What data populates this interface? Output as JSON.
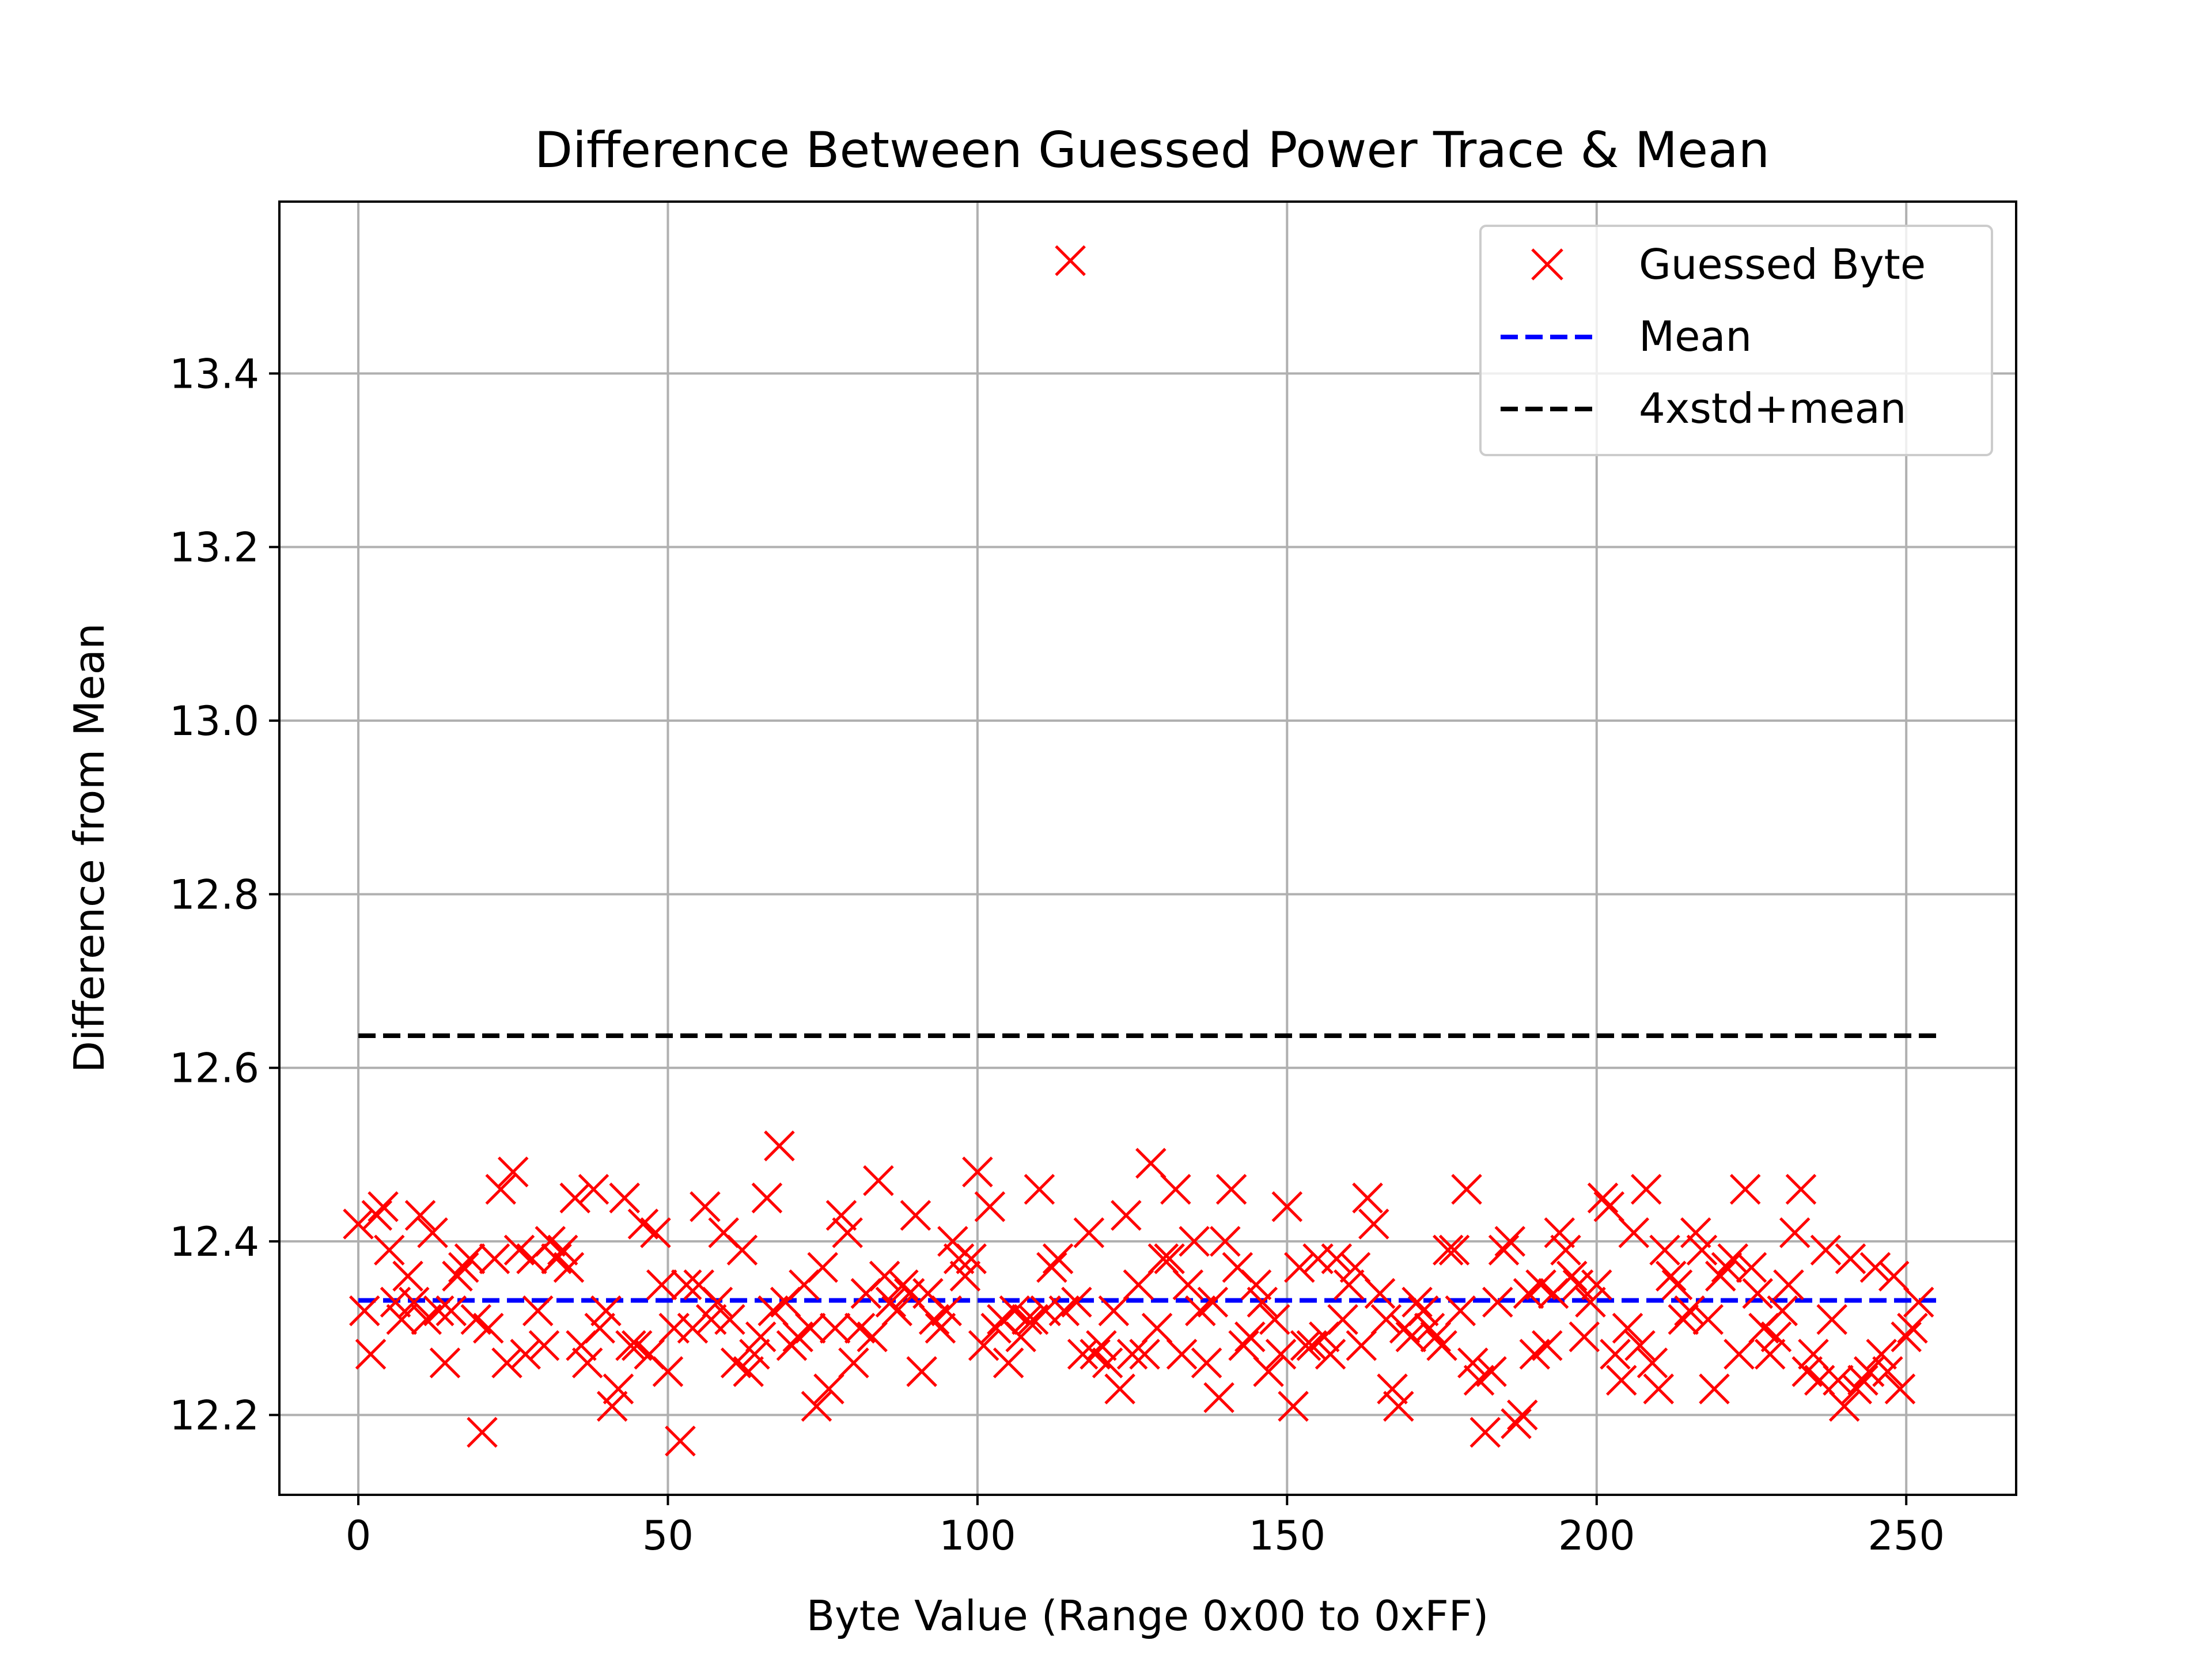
{
  "chart_data": {
    "type": "scatter",
    "title": "Difference Between Guessed Power Trace & Mean",
    "xlabel": "Byte Value (Range 0x00 to 0xFF)",
    "ylabel": "Difference from Mean",
    "xlim": [
      -12.75,
      267.75
    ],
    "ylim": [
      12.108,
      13.598
    ],
    "xticks": [
      0,
      50,
      100,
      150,
      200,
      250
    ],
    "xtick_labels": [
      "0",
      "50",
      "100",
      "150",
      "200",
      "250"
    ],
    "yticks": [
      12.2,
      12.4,
      12.6,
      12.8,
      13.0,
      13.2,
      13.4
    ],
    "ytick_labels": [
      "12.2",
      "12.4",
      "12.6",
      "12.8",
      "13.0",
      "13.2",
      "13.4"
    ],
    "grid": true,
    "legend_position": "top-right",
    "colors": {
      "points": "#ff0000",
      "mean": "#0000ff",
      "threshold": "#000000",
      "grid": "#b0b0b0"
    },
    "series": [
      {
        "name": "Guessed Byte",
        "kind": "scatter",
        "marker": "x",
        "x_start": 0,
        "values": [
          12.42,
          12.32,
          12.27,
          12.43,
          12.44,
          12.39,
          12.33,
          12.31,
          12.36,
          12.33,
          12.43,
          12.31,
          12.41,
          12.32,
          12.26,
          12.32,
          12.36,
          12.37,
          12.38,
          12.31,
          12.18,
          12.3,
          12.38,
          12.46,
          12.26,
          12.48,
          12.39,
          12.27,
          12.38,
          12.32,
          12.28,
          12.4,
          12.38,
          12.39,
          12.37,
          12.45,
          12.28,
          12.26,
          12.46,
          12.3,
          12.32,
          12.21,
          12.23,
          12.45,
          12.28,
          12.28,
          12.42,
          12.27,
          12.41,
          12.35,
          12.25,
          12.3,
          12.17,
          12.35,
          12.3,
          12.35,
          12.44,
          12.31,
          12.33,
          12.41,
          12.31,
          12.26,
          12.39,
          12.25,
          12.27,
          12.29,
          12.45,
          12.32,
          12.51,
          12.33,
          12.28,
          12.29,
          12.35,
          12.3,
          12.21,
          12.37,
          12.23,
          12.3,
          12.43,
          12.41,
          12.26,
          12.3,
          12.34,
          12.29,
          12.47,
          12.36,
          12.33,
          12.32,
          12.35,
          12.34,
          12.43,
          12.25,
          12.34,
          12.31,
          12.3,
          12.32,
          12.4,
          12.38,
          12.36,
          12.38,
          12.48,
          12.28,
          12.44,
          12.3,
          12.31,
          12.26,
          12.32,
          12.29,
          12.31,
          12.31,
          12.46,
          12.32,
          12.37,
          12.38,
          12.32,
          13.53,
          12.33,
          12.27,
          12.41,
          12.27,
          12.28,
          12.26,
          12.32,
          12.23,
          12.43,
          12.27,
          12.35,
          12.27,
          12.49,
          12.3,
          12.38,
          12.38,
          12.46,
          12.27,
          12.35,
          12.4,
          12.32,
          12.26,
          12.33,
          12.22,
          12.4,
          12.46,
          12.37,
          12.28,
          12.29,
          12.35,
          12.33,
          12.25,
          12.31,
          12.27,
          12.44,
          12.21,
          12.37,
          12.28,
          12.28,
          12.38,
          12.29,
          12.27,
          12.38,
          12.31,
          12.35,
          12.37,
          12.28,
          12.45,
          12.42,
          12.34,
          12.31,
          12.23,
          12.21,
          12.3,
          12.29,
          12.33,
          12.32,
          12.3,
          12.29,
          12.28,
          12.39,
          12.39,
          12.32,
          12.46,
          12.26,
          12.24,
          12.18,
          12.25,
          12.33,
          12.39,
          12.4,
          12.19,
          12.2,
          12.34,
          12.27,
          12.35,
          12.28,
          12.34,
          12.41,
          12.39,
          12.36,
          12.35,
          12.29,
          12.33,
          12.35,
          12.45,
          12.44,
          12.27,
          12.24,
          12.3,
          12.41,
          12.28,
          12.46,
          12.26,
          12.23,
          12.39,
          12.36,
          12.35,
          12.31,
          12.32,
          12.41,
          12.39,
          12.31,
          12.23,
          12.36,
          12.37,
          12.38,
          12.27,
          12.46,
          12.37,
          12.34,
          12.3,
          12.27,
          12.29,
          12.32,
          12.35,
          12.41,
          12.46,
          12.25,
          12.27,
          12.24,
          12.39,
          12.31,
          12.24,
          12.21,
          12.38,
          12.23,
          12.24,
          12.25,
          12.37,
          12.27,
          12.25,
          12.36,
          12.23,
          12.29,
          12.3,
          12.33
        ]
      },
      {
        "name": "Mean",
        "kind": "line",
        "style": "dashed",
        "x": [
          0,
          255
        ],
        "y": 12.332
      },
      {
        "name": "4xstd+mean",
        "kind": "line",
        "style": "dashed",
        "x": [
          0,
          255
        ],
        "y": 12.637
      }
    ]
  }
}
